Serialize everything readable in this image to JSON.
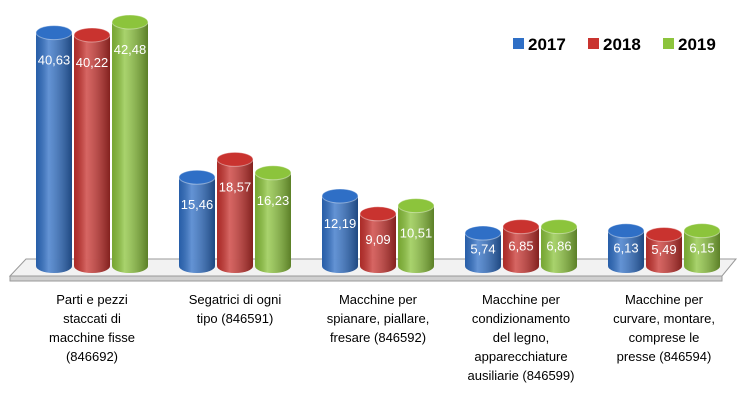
{
  "chart_data": {
    "type": "bar",
    "categories": [
      "Parti e pezzi\nstaccati di\nmacchine fisse\n(846692)",
      "Segatrici di ogni\ntipo (846591)",
      "Macchine per\nspianare, piallare,\nfresare (846592)",
      "Macchine per\ncondizionamento\ndel legno,\napparecchiature\nausiliarie (846599)",
      "Macchine per\ncurvare, montare,\ncomprese le\npresse (846594)"
    ],
    "series": [
      {
        "name": "2017",
        "color": "#2f6fc6",
        "values": [
          40.63,
          15.46,
          12.19,
          5.74,
          6.13
        ],
        "value_labels": [
          "40,63",
          "15,46",
          "12,19",
          "5,74",
          "6,13"
        ]
      },
      {
        "name": "2018",
        "color": "#c9332f",
        "values": [
          40.22,
          18.57,
          9.09,
          6.85,
          5.49
        ],
        "value_labels": [
          "40,22",
          "18,57",
          "9,09",
          "6,85",
          "5,49"
        ]
      },
      {
        "name": "2019",
        "color": "#8cc43c",
        "values": [
          42.48,
          16.23,
          10.51,
          6.86,
          6.15
        ],
        "value_labels": [
          "42,48",
          "16,23",
          "10,51",
          "6,86",
          "6,15"
        ]
      }
    ],
    "legend": "top-right"
  }
}
